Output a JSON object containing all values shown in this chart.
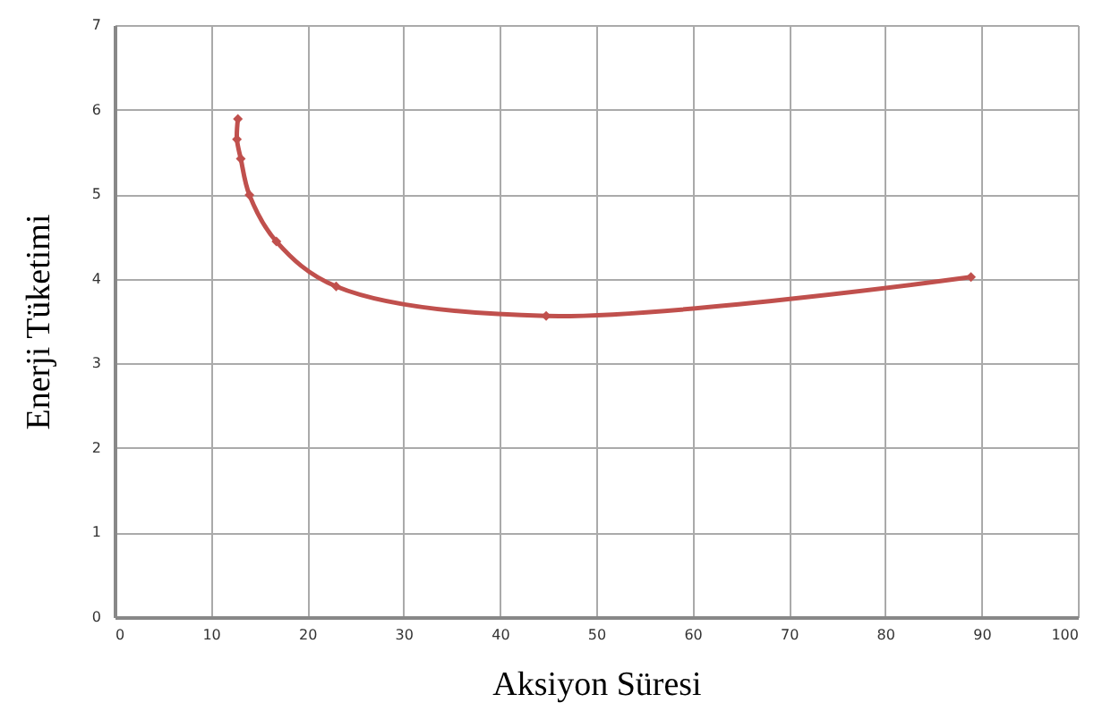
{
  "chart_data": {
    "type": "line",
    "xlabel": "Aksiyon Süresi",
    "ylabel": "Enerji Tüketimi",
    "x": [
      12.8,
      12.7,
      13.1,
      14.0,
      16.8,
      23.0,
      44.8,
      88.9
    ],
    "series": [
      {
        "color": "#c0504d",
        "values": [
          5.89,
          5.65,
          5.42,
          4.99,
          4.44,
          3.91,
          3.56,
          4.02
        ]
      }
    ],
    "xlim": [
      0,
      100
    ],
    "xticks": [
      0,
      10,
      20,
      30,
      40,
      50,
      60,
      70,
      80,
      90,
      100
    ],
    "ylim": [
      0,
      7
    ],
    "yticks": [
      0,
      1,
      2,
      3,
      4,
      5,
      6,
      7
    ],
    "grid": true,
    "marker": "diamond",
    "line_style": "solid"
  }
}
